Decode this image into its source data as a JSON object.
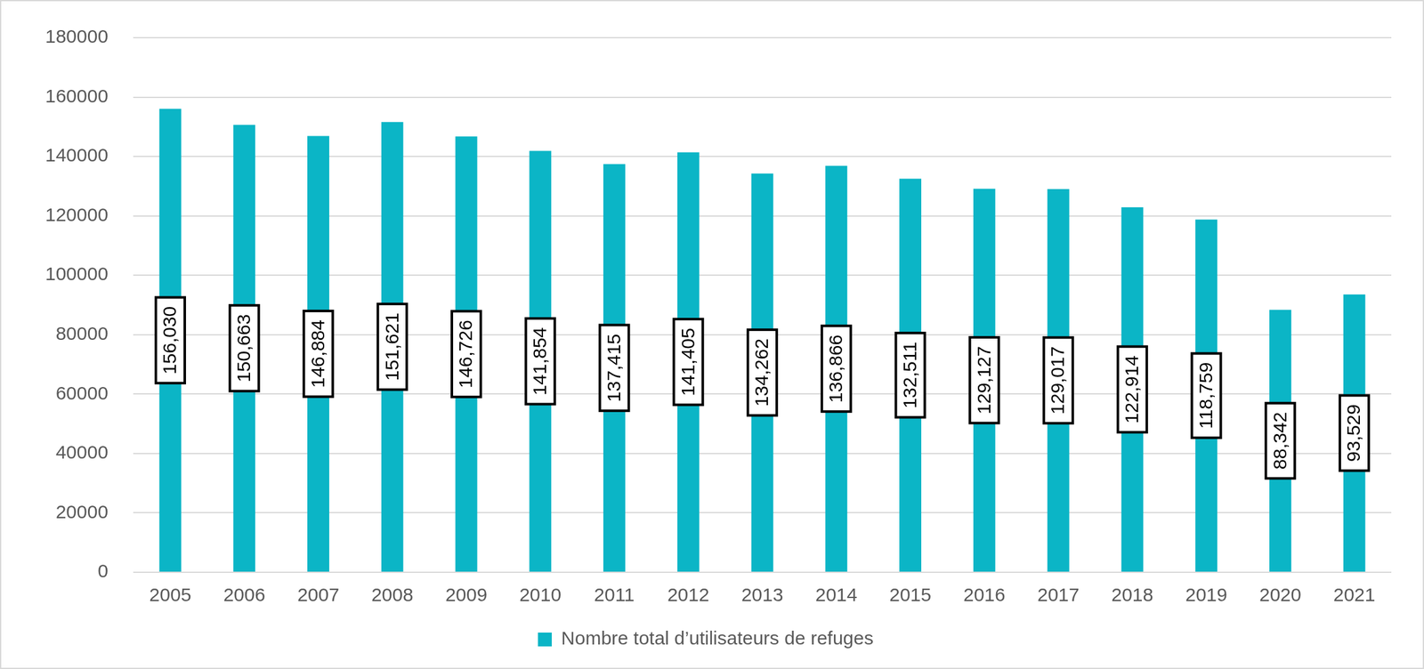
{
  "chart_data": {
    "type": "bar",
    "categories": [
      "2005",
      "2006",
      "2007",
      "2008",
      "2009",
      "2010",
      "2011",
      "2012",
      "2013",
      "2014",
      "2015",
      "2016",
      "2017",
      "2018",
      "2019",
      "2020",
      "2021"
    ],
    "series": [
      {
        "name": "Nombre total d’utilisateurs de refuges",
        "color": "#0bb5c6",
        "values": [
          156030,
          150663,
          146884,
          151621,
          146726,
          141854,
          137415,
          141405,
          134262,
          136866,
          132511,
          129127,
          129017,
          122914,
          118759,
          88342,
          93529
        ],
        "value_labels": [
          "156,030",
          "150,663",
          "146,884",
          "151,621",
          "146,726",
          "141,854",
          "137,415",
          "141,405",
          "134,262",
          "136,866",
          "132,511",
          "129,127",
          "129,017",
          "122,914",
          "118,759",
          "88,342",
          "93,529"
        ]
      }
    ],
    "ylim": [
      0,
      180000
    ],
    "yticks": [
      0,
      20000,
      40000,
      60000,
      80000,
      100000,
      120000,
      140000,
      160000,
      180000
    ],
    "grid": true,
    "legend": "bottom",
    "data_labels": true
  }
}
